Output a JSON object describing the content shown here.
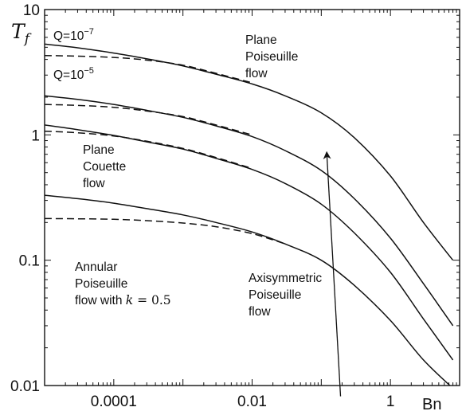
{
  "chart_data": {
    "type": "line",
    "title": "",
    "xlabel": "Bn",
    "ylabel": "T_f",
    "x_scale": "log",
    "y_scale": "log",
    "xlim": [
      1e-05,
      10
    ],
    "ylim": [
      0.01,
      10
    ],
    "x_ticks": [
      {
        "value": 0.0001,
        "label": "0.0001"
      },
      {
        "value": 0.01,
        "label": "0.01"
      },
      {
        "value": 1,
        "label": "1"
      }
    ],
    "y_ticks": [
      {
        "value": 0.01,
        "label": "0.01"
      },
      {
        "value": 0.1,
        "label": "0.1"
      },
      {
        "value": 1,
        "label": "1"
      },
      {
        "value": 10,
        "label": "10"
      }
    ],
    "grid": false,
    "series": [
      {
        "style": "solid",
        "color": "#111111",
        "x": [
          1e-05,
          3e-05,
          0.0001,
          0.0003,
          0.001,
          0.003,
          0.01,
          0.03,
          0.1,
          0.3,
          1,
          3,
          8
        ],
        "y": [
          5.3,
          4.95,
          4.5,
          4.05,
          3.55,
          3.05,
          2.55,
          2.05,
          1.5,
          0.95,
          0.47,
          0.2,
          0.1
        ]
      },
      {
        "style": "solid",
        "color": "#111111",
        "x": [
          1e-05,
          3e-05,
          0.0001,
          0.0003,
          0.001,
          0.003,
          0.01,
          0.03,
          0.1,
          0.3,
          1,
          3,
          8
        ],
        "y": [
          2.05,
          1.92,
          1.75,
          1.57,
          1.38,
          1.18,
          0.97,
          0.75,
          0.52,
          0.31,
          0.15,
          0.065,
          0.03
        ]
      },
      {
        "style": "solid",
        "color": "#111111",
        "x": [
          1e-05,
          3e-05,
          0.0001,
          0.0003,
          0.001,
          0.003,
          0.01,
          0.03,
          0.1,
          0.3,
          1,
          3,
          8
        ],
        "y": [
          1.2,
          1.1,
          0.99,
          0.88,
          0.77,
          0.65,
          0.53,
          0.41,
          0.28,
          0.165,
          0.08,
          0.034,
          0.016
        ]
      },
      {
        "style": "solid",
        "color": "#111111",
        "x": [
          1e-05,
          3e-05,
          0.0001,
          0.0003,
          0.001,
          0.003,
          0.01,
          0.03,
          0.1,
          0.3,
          1,
          3,
          8
        ],
        "y": [
          0.33,
          0.31,
          0.285,
          0.258,
          0.23,
          0.2,
          0.168,
          0.135,
          0.1,
          0.063,
          0.033,
          0.016,
          0.0095
        ]
      },
      {
        "style": "dashed",
        "color": "#111111",
        "x": [
          1e-05,
          3e-05,
          0.0001,
          0.0003,
          0.001,
          0.003,
          0.01
        ],
        "y": [
          4.3,
          4.25,
          4.15,
          3.95,
          3.6,
          3.1,
          2.6
        ]
      },
      {
        "style": "dashed",
        "color": "#111111",
        "x": [
          1e-05,
          3e-05,
          0.0001,
          0.0003,
          0.001,
          0.003,
          0.01
        ],
        "y": [
          1.75,
          1.72,
          1.66,
          1.55,
          1.4,
          1.2,
          1.0
        ]
      },
      {
        "style": "dashed",
        "color": "#111111",
        "x": [
          1e-05,
          3e-05,
          0.0001,
          0.0003,
          0.001,
          0.003,
          0.01
        ],
        "y": [
          1.07,
          1.04,
          0.98,
          0.89,
          0.78,
          0.66,
          0.54
        ]
      },
      {
        "style": "dashed",
        "color": "#111111",
        "x": [
          1e-05,
          3e-05,
          0.0001,
          0.0003,
          0.001,
          0.003,
          0.01,
          0.03
        ],
        "y": [
          0.215,
          0.214,
          0.212,
          0.207,
          0.198,
          0.185,
          0.163,
          0.135
        ]
      }
    ],
    "annotations": {
      "q_high": {
        "text": "Q=10",
        "exp": "−7"
      },
      "q_low": {
        "text": "Q=10",
        "exp": "−5"
      },
      "plane_poiseuille": [
        "Plane",
        "Poiseuille",
        "flow"
      ],
      "plane_couette": [
        "Plane",
        "Couette",
        "flow"
      ],
      "annular": [
        "Annular",
        "Poiseuille",
        "flow with"
      ],
      "annular_k": {
        "var": "k",
        "eq": " = 0.5"
      },
      "axisymmetric": [
        "Axisymmetric",
        "Poiseuille",
        "flow"
      ],
      "arrow": {
        "from": [
          0.19,
          0.0082
        ],
        "to": [
          0.12,
          0.72
        ]
      }
    }
  }
}
